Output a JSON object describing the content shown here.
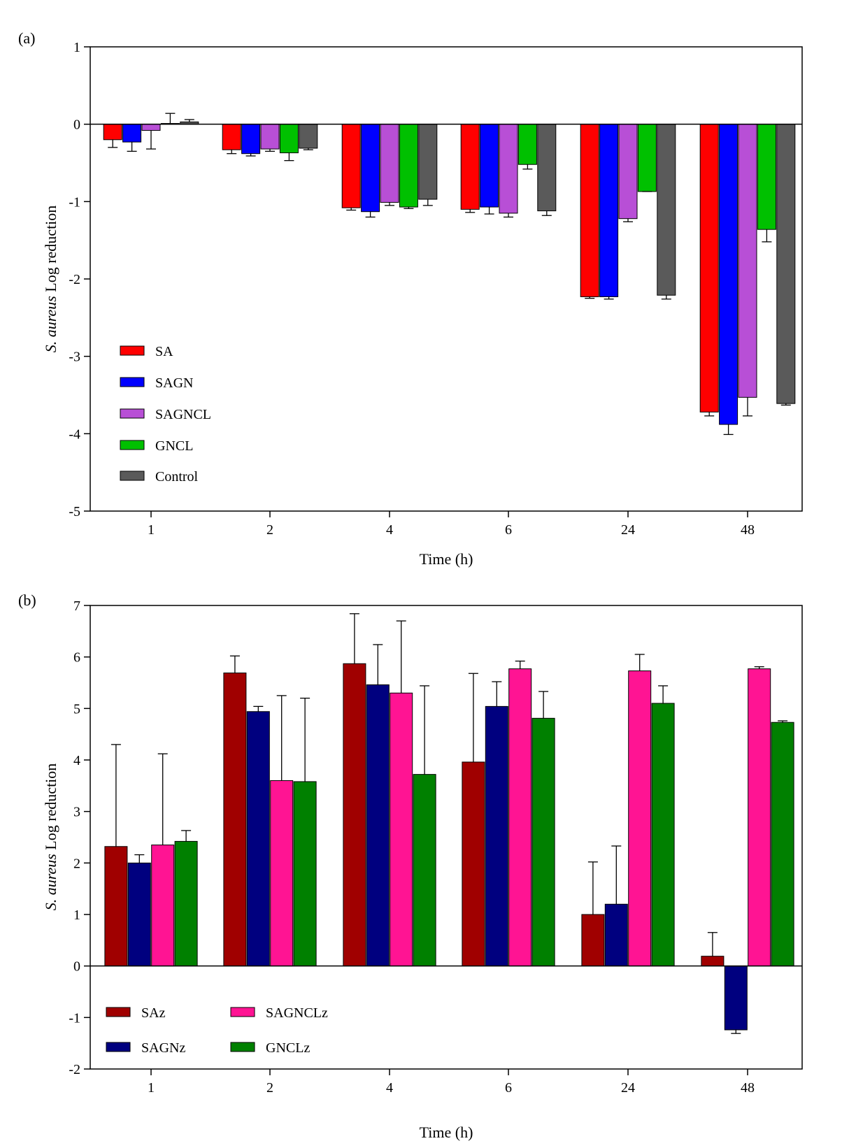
{
  "chart_data": [
    {
      "panel_label": "(a)",
      "type": "bar",
      "xlabel": "Time (h)",
      "ylabel_italic": "S. aureus",
      "ylabel_rest": " Log reduction",
      "ylim": [
        -5,
        1
      ],
      "yticks": [
        1,
        0,
        -1,
        -2,
        -3,
        -4,
        -5
      ],
      "categories": [
        "1",
        "2",
        "4",
        "6",
        "24",
        "48"
      ],
      "legend_position": "lower-left",
      "series": [
        {
          "name": "SA",
          "color": "#ff0000",
          "values": [
            -0.2,
            -0.33,
            -1.08,
            -1.1,
            -2.23,
            -3.72
          ],
          "errors": [
            0.1,
            0.05,
            0.03,
            0.04,
            0.02,
            0.05
          ]
        },
        {
          "name": "SAGN",
          "color": "#0000ff",
          "values": [
            -0.23,
            -0.38,
            -1.13,
            -1.07,
            -2.23,
            -3.88
          ],
          "errors": [
            0.12,
            0.03,
            0.07,
            0.09,
            0.03,
            0.13
          ]
        },
        {
          "name": "SAGNCL",
          "color": "#b84fd6",
          "values": [
            -0.08,
            -0.32,
            -1.01,
            -1.15,
            -1.22,
            -3.53
          ],
          "errors": [
            0.24,
            0.03,
            0.04,
            0.05,
            0.04,
            0.24
          ]
        },
        {
          "name": "GNCL",
          "color": "#00c000",
          "values": [
            0.01,
            -0.37,
            -1.07,
            -0.52,
            -0.87,
            -1.36
          ],
          "errors": [
            0.13,
            0.1,
            0.02,
            0.06,
            0.0,
            0.16
          ]
        },
        {
          "name": "Control",
          "color": "#5a5a5a",
          "values": [
            0.03,
            -0.31,
            -0.97,
            -1.12,
            -2.21,
            -3.61
          ],
          "errors": [
            0.03,
            0.02,
            0.08,
            0.06,
            0.05,
            0.02
          ]
        }
      ]
    },
    {
      "panel_label": "(b)",
      "type": "bar",
      "xlabel": "Time (h)",
      "ylabel_italic": "S. aureus",
      "ylabel_rest": " Log reduction",
      "ylim": [
        -2,
        7
      ],
      "yticks": [
        7,
        6,
        5,
        4,
        3,
        2,
        1,
        0,
        -1,
        -2
      ],
      "categories": [
        "1",
        "2",
        "4",
        "6",
        "24",
        "48"
      ],
      "legend_position": "lower-left",
      "series": [
        {
          "name": "SAz",
          "color": "#a00000",
          "values": [
            2.32,
            5.69,
            5.87,
            3.96,
            1.0,
            0.19
          ],
          "errors": [
            1.98,
            0.33,
            0.97,
            1.72,
            1.02,
            0.46
          ]
        },
        {
          "name": "SAGNz",
          "color": "#00007f",
          "values": [
            2.0,
            4.94,
            5.46,
            5.04,
            1.2,
            -1.24
          ],
          "errors": [
            0.16,
            0.1,
            0.78,
            0.48,
            1.13,
            0.07
          ]
        },
        {
          "name": "SAGNCLz",
          "color": "#ff1493",
          "values": [
            2.35,
            3.6,
            5.3,
            5.77,
            5.73,
            5.77
          ],
          "errors": [
            1.77,
            1.65,
            1.4,
            0.15,
            0.32,
            0.04
          ]
        },
        {
          "name": "GNCLz",
          "color": "#008000",
          "values": [
            2.42,
            3.58,
            3.72,
            4.81,
            5.1,
            4.73
          ],
          "errors": [
            0.21,
            1.62,
            1.72,
            0.52,
            0.34,
            0.03
          ]
        }
      ]
    }
  ]
}
